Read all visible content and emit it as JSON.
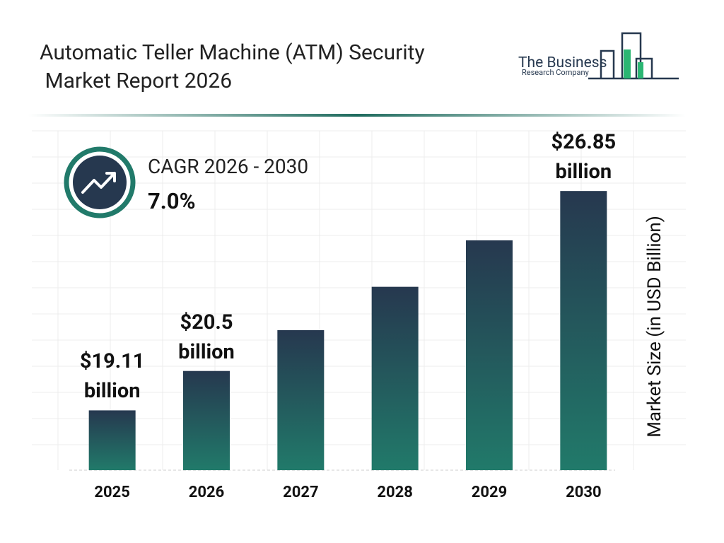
{
  "chart_data": {
    "type": "bar",
    "title": "Automatic Teller Machine (ATM) Security Market Report 2026",
    "logo": {
      "line1": "The Business",
      "line2": "Research Company"
    },
    "cagr_label": "CAGR 2026 - 2030",
    "cagr_value": "7.0%",
    "y_label": "Market Size (in USD Billion)",
    "categories": [
      "2025",
      "2026",
      "2027",
      "2028",
      "2029",
      "2030"
    ],
    "values": [
      19.11,
      20.5,
      21.94,
      23.47,
      25.11,
      26.85
    ],
    "value_labels": [
      "$19.11 billion",
      "$20.5 billion",
      null,
      null,
      null,
      "$26.85 billion"
    ],
    "color_top": "#26384f",
    "color_bottom": "#217a6a",
    "ylim": [
      17,
      28.6
    ]
  }
}
